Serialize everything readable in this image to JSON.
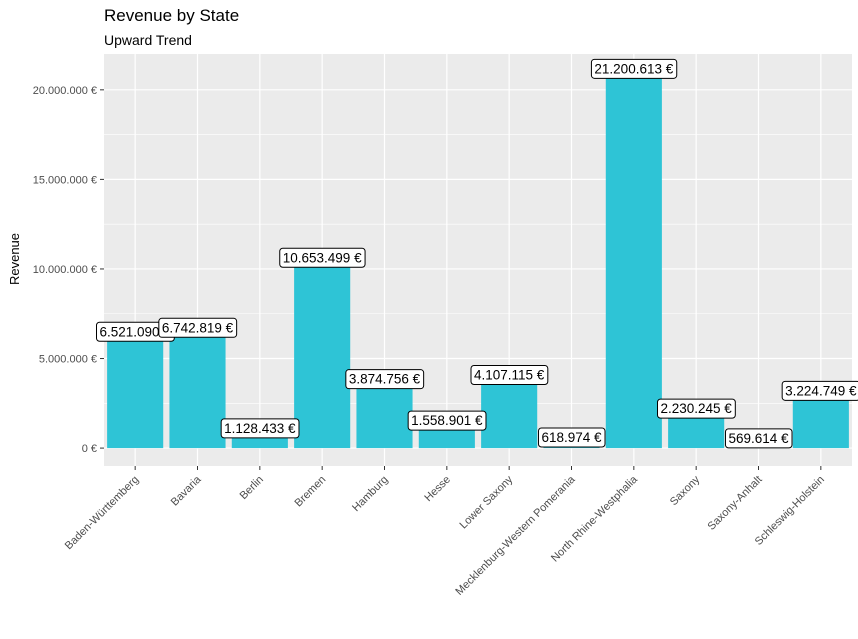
{
  "chart_data": {
    "type": "bar",
    "title": "Revenue by State",
    "subtitle": "Upward Trend",
    "xlabel": "",
    "ylabel": "Revenue",
    "ylim": [
      -1000000,
      22000000
    ],
    "yticks": [
      0,
      5000000,
      10000000,
      15000000,
      20000000
    ],
    "ytick_labels": [
      "0 €",
      "5.000.000 €",
      "10.000.000 €",
      "15.000.000 €",
      "20.000.000 €"
    ],
    "categories": [
      "Baden-Württemberg",
      "Bavaria",
      "Berlin",
      "Bremen",
      "Hamburg",
      "Hesse",
      "Lower Saxony",
      "Mecklenburg-Western Pomerania",
      "North Rhine-Westphalia",
      "Saxony",
      "Saxony-Anhalt",
      "Schleswig-Holstein"
    ],
    "values": [
      6521090,
      6742819,
      1128433,
      10653499,
      3874756,
      1558901,
      4107115,
      618974,
      21200613,
      2230245,
      569614,
      3224749
    ],
    "data_labels": [
      "6.521.090 €",
      "6.742.819 €",
      "1.128.433 €",
      "10.653.499 €",
      "3.874.756 €",
      "1.558.901 €",
      "4.107.115 €",
      "618.974 €",
      "21.200.613 €",
      "2.230.245 €",
      "569.614 €",
      "3.224.749 €"
    ],
    "bar_color": "#2EC4D6",
    "panel_background": "#EBEBEB",
    "grid": true,
    "legend": "none"
  }
}
